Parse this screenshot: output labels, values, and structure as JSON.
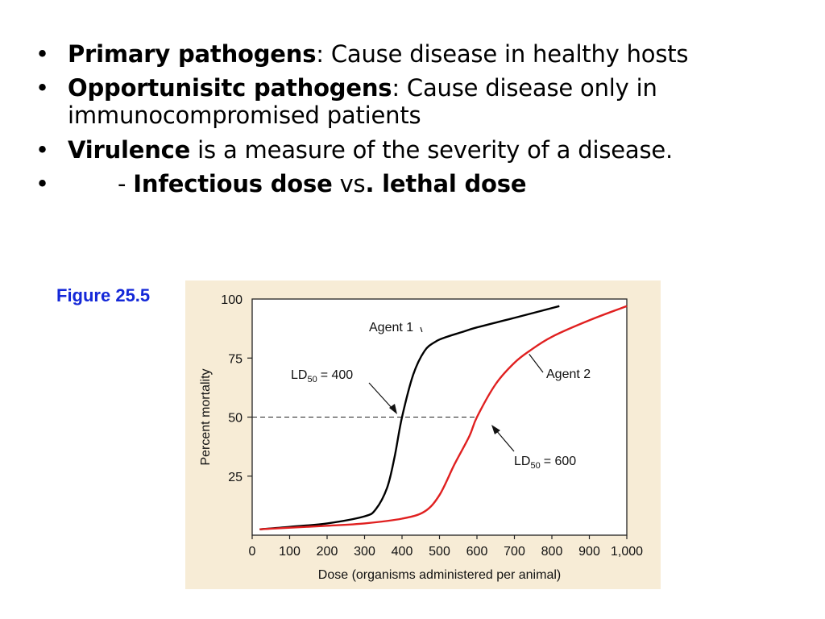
{
  "bullets": [
    {
      "bold": "Primary pathogens",
      "text": ": Cause disease in healthy hosts"
    },
    {
      "bold": "Opportunisitc pathogens",
      "text": ": Cause disease only in immunocompromised patients"
    },
    {
      "bold": "Virulence",
      "text": " is a measure of the severity of a disease."
    },
    {
      "prefix": "- ",
      "bold": "Infectious dose",
      "mid": " vs",
      "bold2": ". lethal dose"
    }
  ],
  "figure_label": "Figure 25.5",
  "chart_data": {
    "type": "line",
    "xlabel": "Dose (organisms administered per animal)",
    "ylabel": "Percent mortality",
    "xlim": [
      0,
      1000
    ],
    "ylim": [
      0,
      100
    ],
    "xticks": [
      0,
      100,
      200,
      300,
      400,
      500,
      600,
      700,
      800,
      900,
      1000
    ],
    "xtick_labels": [
      "0",
      "100",
      "200",
      "300",
      "400",
      "500",
      "600",
      "700",
      "800",
      "900",
      "1,000"
    ],
    "yticks": [
      25,
      50,
      75,
      100
    ],
    "series": [
      {
        "name": "Agent 1",
        "color": "#000000",
        "x": [
          20,
          100,
          200,
          300,
          330,
          360,
          380,
          400,
          430,
          460,
          490,
          520,
          560,
          600,
          700,
          820
        ],
        "y": [
          2.5,
          3.5,
          5,
          8,
          11,
          20,
          33,
          50,
          68,
          78,
          82,
          84,
          86,
          88,
          92,
          97
        ]
      },
      {
        "name": "Agent 2",
        "color": "#e02020",
        "x": [
          20,
          200,
          300,
          400,
          460,
          500,
          540,
          580,
          600,
          650,
          700,
          740,
          800,
          900,
          1000
        ],
        "y": [
          2.5,
          4,
          5,
          7,
          10,
          17,
          30,
          42,
          50,
          64,
          73,
          78,
          84,
          91,
          97
        ]
      }
    ],
    "reference_line": {
      "y": 50,
      "x_end": 600
    },
    "annotations": [
      {
        "label": "Agent 1",
        "target": [
          460,
          85
        ]
      },
      {
        "label": "Agent 2",
        "target": [
          735,
          77
        ]
      },
      {
        "label": "LD",
        "sub": "50",
        "value": "= 400",
        "target": [
          400,
          55
        ]
      },
      {
        "label": "LD",
        "sub": "50",
        "value": "= 600",
        "target": [
          605,
          47
        ]
      }
    ]
  }
}
